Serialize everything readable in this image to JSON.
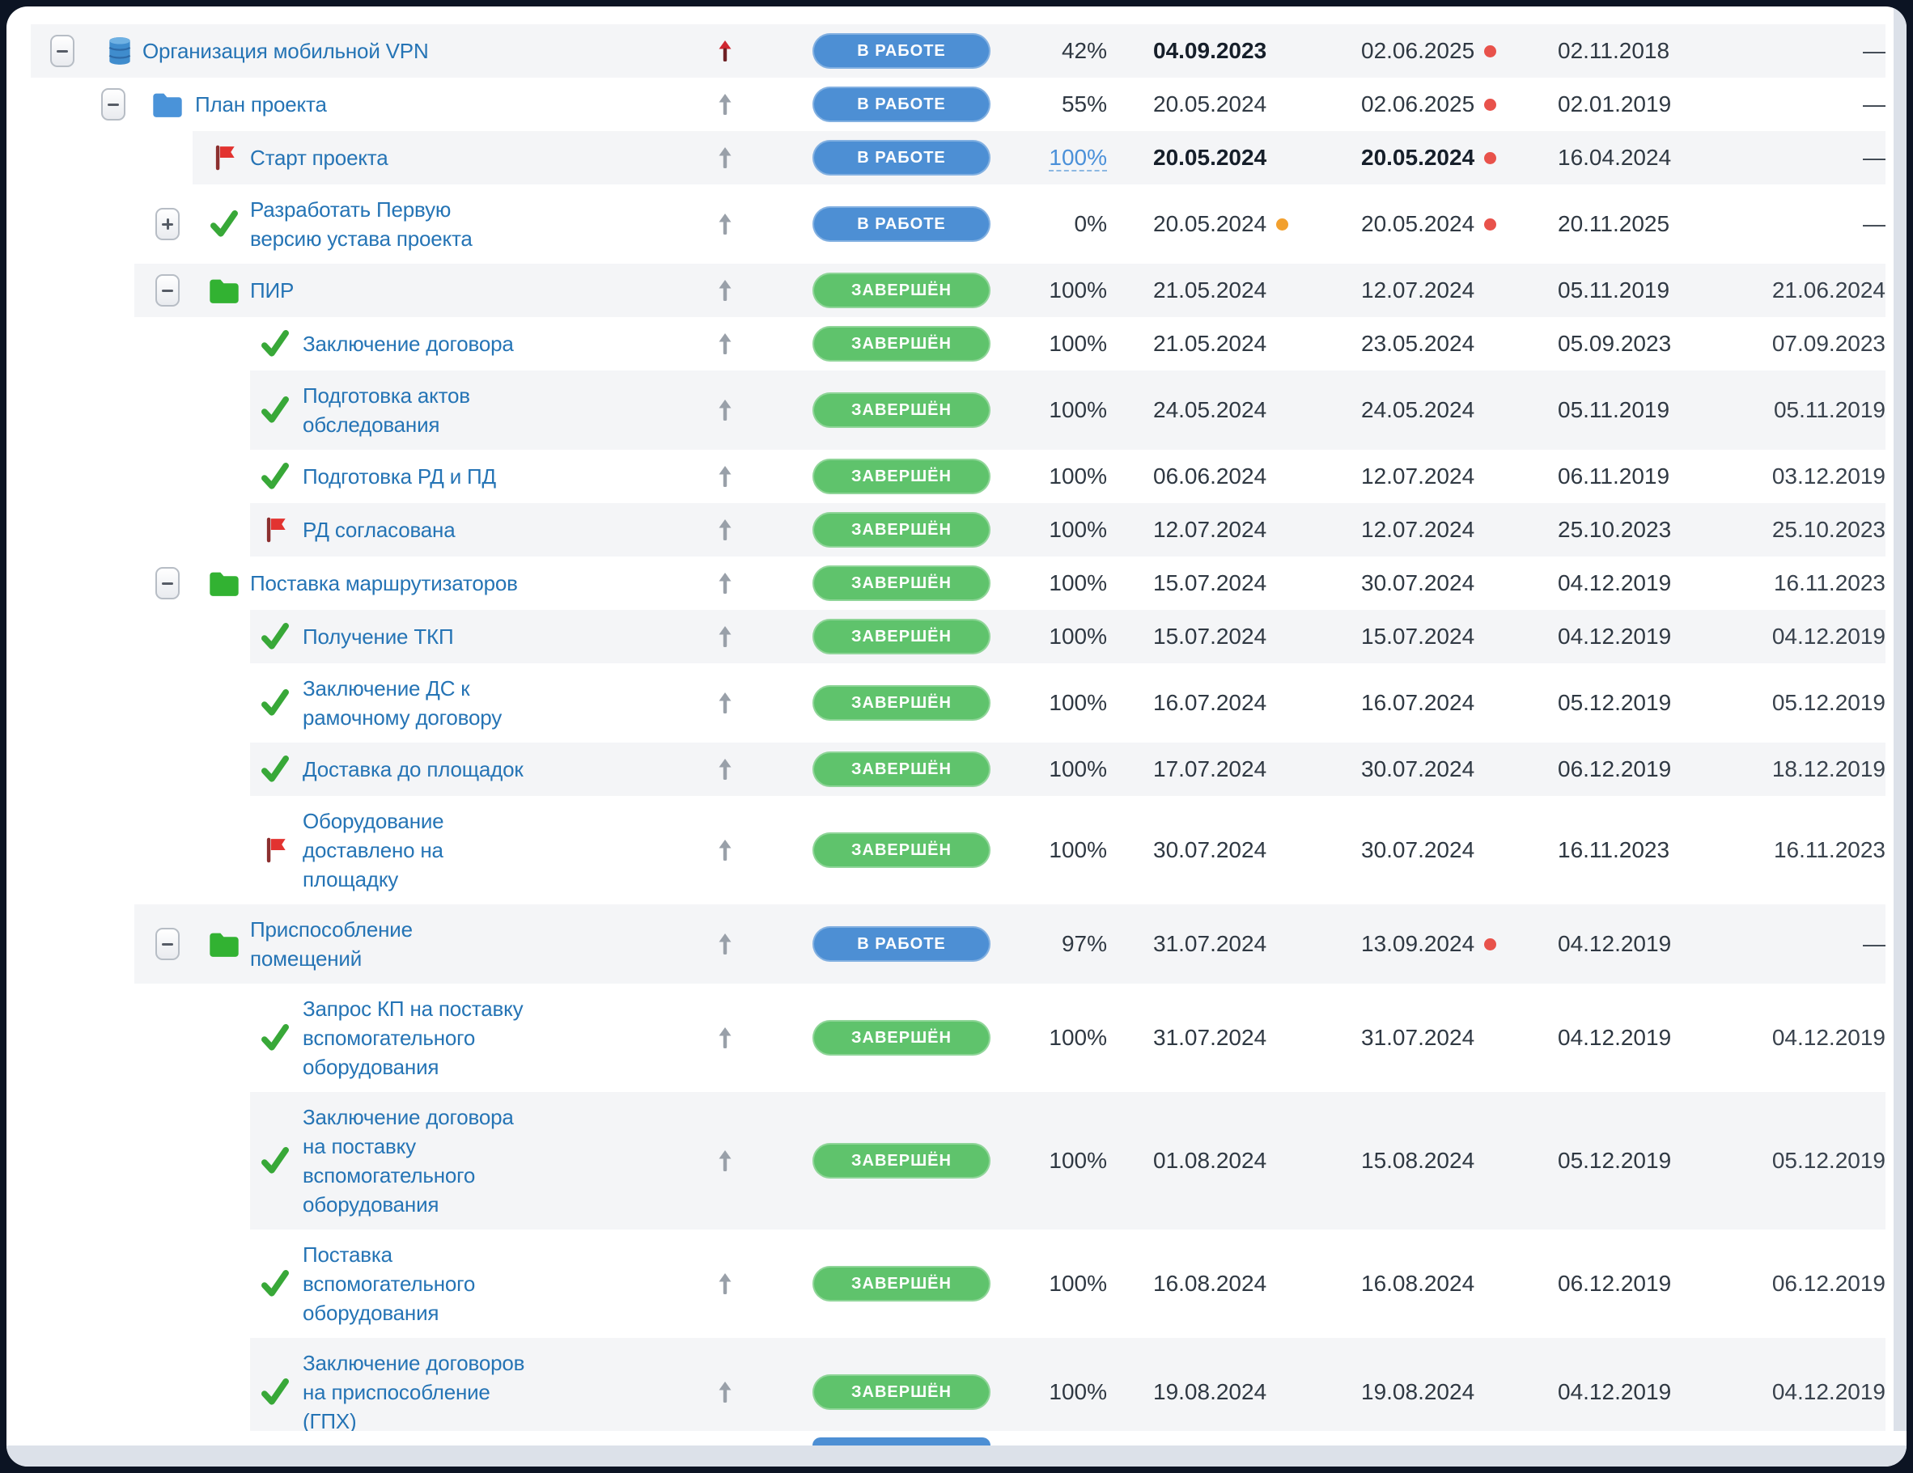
{
  "labels": {
    "working": "В РАБОТЕ",
    "done": "ЗАВЕРШЁН"
  },
  "colors": {
    "badge_working": "#4d8fd4",
    "badge_done": "#5fc36c",
    "task_name_link": "#2574b5",
    "dot_red": "#e8524b",
    "dot_orange": "#f2a02e",
    "arrow_red": "#ce2630",
    "arrow_gray": "#99a0a9",
    "folder_blue": "#4a93d9",
    "folder_green": "#32b232",
    "check_green": "#38a838",
    "flag_red": "#e23330",
    "row_stripe": "#f4f5f7"
  },
  "table": {
    "rows": [
      {
        "level": 0,
        "toggle": "minus",
        "icon": "database",
        "name": "Организация мобильной VPN",
        "arrow": "red",
        "status": "working",
        "percent": "42%",
        "percent_link": false,
        "d1": "04.09.2023",
        "d1_bold": true,
        "d1_dot": null,
        "d2": "02.06.2025",
        "d2_bold": false,
        "d2_dot": "red",
        "d3": "02.11.2018",
        "d4": "—"
      },
      {
        "level": 1,
        "toggle": "minus",
        "icon": "folder-blue",
        "name": "План проекта",
        "arrow": "gray",
        "status": "working",
        "percent": "55%",
        "percent_link": false,
        "d1": "20.05.2024",
        "d1_bold": false,
        "d1_dot": null,
        "d2": "02.06.2025",
        "d2_bold": false,
        "d2_dot": "red",
        "d3": "02.01.2019",
        "d4": "—"
      },
      {
        "level": 2,
        "toggle": null,
        "icon": "flag",
        "name": "Старт проекта",
        "arrow": "gray",
        "status": "working",
        "percent": "100%",
        "percent_link": true,
        "d1": "20.05.2024",
        "d1_bold": true,
        "d1_dot": null,
        "d2": "20.05.2024",
        "d2_bold": true,
        "d2_dot": "red",
        "d3": "16.04.2024",
        "d4": "—"
      },
      {
        "level": 2,
        "toggle": "plus",
        "icon": "check",
        "name": "Разработать Первую версию устава проекта",
        "arrow": "gray",
        "status": "working",
        "percent": "0%",
        "percent_link": false,
        "d1": "20.05.2024",
        "d1_bold": false,
        "d1_dot": "orange",
        "d2": "20.05.2024",
        "d2_bold": false,
        "d2_dot": "red",
        "d3": "20.11.2025",
        "d4": "—"
      },
      {
        "level": 2,
        "toggle": "minus",
        "icon": "folder-green",
        "name": "ПИР",
        "arrow": "gray",
        "status": "done",
        "percent": "100%",
        "percent_link": false,
        "d1": "21.05.2024",
        "d1_bold": false,
        "d1_dot": null,
        "d2": "12.07.2024",
        "d2_bold": false,
        "d2_dot": null,
        "d3": "05.11.2019",
        "d4": "21.06.2024"
      },
      {
        "level": 3,
        "toggle": null,
        "icon": "check",
        "name": "Заключение договора",
        "arrow": "gray",
        "status": "done",
        "percent": "100%",
        "percent_link": false,
        "d1": "21.05.2024",
        "d1_bold": false,
        "d1_dot": null,
        "d2": "23.05.2024",
        "d2_bold": false,
        "d2_dot": null,
        "d3": "05.09.2023",
        "d4": "07.09.2023"
      },
      {
        "level": 3,
        "toggle": null,
        "icon": "check",
        "name": "Подготовка актов обследования",
        "arrow": "gray",
        "status": "done",
        "percent": "100%",
        "percent_link": false,
        "d1": "24.05.2024",
        "d1_bold": false,
        "d1_dot": null,
        "d2": "24.05.2024",
        "d2_bold": false,
        "d2_dot": null,
        "d3": "05.11.2019",
        "d4": "05.11.2019"
      },
      {
        "level": 3,
        "toggle": null,
        "icon": "check",
        "name": "Подготовка РД и ПД",
        "arrow": "gray",
        "status": "done",
        "percent": "100%",
        "percent_link": false,
        "d1": "06.06.2024",
        "d1_bold": false,
        "d1_dot": null,
        "d2": "12.07.2024",
        "d2_bold": false,
        "d2_dot": null,
        "d3": "06.11.2019",
        "d4": "03.12.2019"
      },
      {
        "level": 3,
        "toggle": null,
        "icon": "flag",
        "name": "РД согласована",
        "arrow": "gray",
        "status": "done",
        "percent": "100%",
        "percent_link": false,
        "d1": "12.07.2024",
        "d1_bold": false,
        "d1_dot": null,
        "d2": "12.07.2024",
        "d2_bold": false,
        "d2_dot": null,
        "d3": "25.10.2023",
        "d4": "25.10.2023"
      },
      {
        "level": 2,
        "toggle": "minus",
        "icon": "folder-green",
        "name": "Поставка маршрутизаторов",
        "arrow": "gray",
        "status": "done",
        "percent": "100%",
        "percent_link": false,
        "d1": "15.07.2024",
        "d1_bold": false,
        "d1_dot": null,
        "d2": "30.07.2024",
        "d2_bold": false,
        "d2_dot": null,
        "d3": "04.12.2019",
        "d4": "16.11.2023"
      },
      {
        "level": 3,
        "toggle": null,
        "icon": "check",
        "name": "Получение ТКП",
        "arrow": "gray",
        "status": "done",
        "percent": "100%",
        "percent_link": false,
        "d1": "15.07.2024",
        "d1_bold": false,
        "d1_dot": null,
        "d2": "15.07.2024",
        "d2_bold": false,
        "d2_dot": null,
        "d3": "04.12.2019",
        "d4": "04.12.2019"
      },
      {
        "level": 3,
        "toggle": null,
        "icon": "check",
        "name": "Заключение ДС к рамочному договору",
        "arrow": "gray",
        "status": "done",
        "percent": "100%",
        "percent_link": false,
        "d1": "16.07.2024",
        "d1_bold": false,
        "d1_dot": null,
        "d2": "16.07.2024",
        "d2_bold": false,
        "d2_dot": null,
        "d3": "05.12.2019",
        "d4": "05.12.2019"
      },
      {
        "level": 3,
        "toggle": null,
        "icon": "check",
        "name": "Доставка до площадок",
        "arrow": "gray",
        "status": "done",
        "percent": "100%",
        "percent_link": false,
        "d1": "17.07.2024",
        "d1_bold": false,
        "d1_dot": null,
        "d2": "30.07.2024",
        "d2_bold": false,
        "d2_dot": null,
        "d3": "06.12.2019",
        "d4": "18.12.2019"
      },
      {
        "level": 3,
        "toggle": null,
        "icon": "flag",
        "name": "Оборудование доставлено на площадку",
        "arrow": "gray",
        "status": "done",
        "percent": "100%",
        "percent_link": false,
        "d1": "30.07.2024",
        "d1_bold": false,
        "d1_dot": null,
        "d2": "30.07.2024",
        "d2_bold": false,
        "d2_dot": null,
        "d3": "16.11.2023",
        "d4": "16.11.2023"
      },
      {
        "level": 2,
        "toggle": "minus",
        "icon": "folder-green",
        "name": "Приспособление помещений",
        "arrow": "gray",
        "status": "working",
        "percent": "97%",
        "percent_link": false,
        "d1": "31.07.2024",
        "d1_bold": false,
        "d1_dot": null,
        "d2": "13.09.2024",
        "d2_bold": false,
        "d2_dot": "red",
        "d3": "04.12.2019",
        "d4": "—"
      },
      {
        "level": 3,
        "toggle": null,
        "icon": "check",
        "name": "Запрос КП на поставку вспомогательного оборудования",
        "arrow": "gray",
        "status": "done",
        "percent": "100%",
        "percent_link": false,
        "d1": "31.07.2024",
        "d1_bold": false,
        "d1_dot": null,
        "d2": "31.07.2024",
        "d2_bold": false,
        "d2_dot": null,
        "d3": "04.12.2019",
        "d4": "04.12.2019"
      },
      {
        "level": 3,
        "toggle": null,
        "icon": "check",
        "name": "Заключение договора на поставку вспомогательного оборудования",
        "arrow": "gray",
        "status": "done",
        "percent": "100%",
        "percent_link": false,
        "d1": "01.08.2024",
        "d1_bold": false,
        "d1_dot": null,
        "d2": "15.08.2024",
        "d2_bold": false,
        "d2_dot": null,
        "d3": "05.12.2019",
        "d4": "05.12.2019"
      },
      {
        "level": 3,
        "toggle": null,
        "icon": "check",
        "name": "Поставка вспомогательного оборудования",
        "arrow": "gray",
        "status": "done",
        "percent": "100%",
        "percent_link": false,
        "d1": "16.08.2024",
        "d1_bold": false,
        "d1_dot": null,
        "d2": "16.08.2024",
        "d2_bold": false,
        "d2_dot": null,
        "d3": "06.12.2019",
        "d4": "06.12.2019"
      },
      {
        "level": 3,
        "toggle": null,
        "icon": "check",
        "name": "Заключение договоров на приспособление (ГПХ)",
        "arrow": "gray",
        "status": "done",
        "percent": "100%",
        "percent_link": false,
        "d1": "19.08.2024",
        "d1_bold": false,
        "d1_dot": null,
        "d2": "19.08.2024",
        "d2_bold": false,
        "d2_dot": null,
        "d3": "04.12.2019",
        "d4": "04.12.2019"
      }
    ]
  },
  "partial_next_row": {
    "status": "working"
  }
}
